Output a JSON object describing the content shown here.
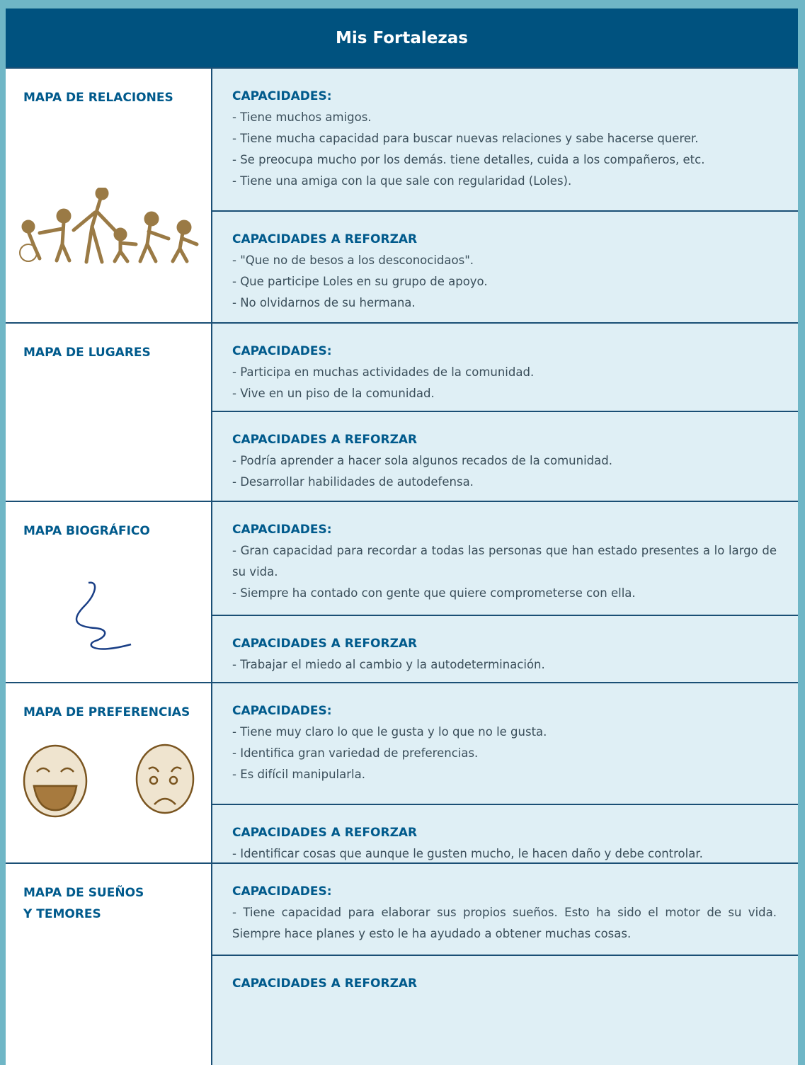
{
  "header": {
    "title": "Mis Fortalezas"
  },
  "sections": [
    {
      "label_lines": [
        "MAPA DE RELACIONES"
      ],
      "blocks": [
        {
          "heading": "CAPACIDADES:",
          "items": [
            "- Tiene muchos amigos.",
            "- Tiene mucha capacidad para buscar nuevas relaciones y sabe hacerse querer.",
            "- Se preocupa mucho por los demás. tiene detalles, cuida a los compañeros, etc.",
            "- Tiene una amiga con la que sale con regularidad (Loles)."
          ]
        },
        {
          "heading": "CAPACIDADES A REFORZAR",
          "items": [
            "- \"Que no de besos a los desconocidaos\".",
            "- Que participe Loles en su grupo de apoyo.",
            "- No olvidarnos de su hermana."
          ]
        }
      ]
    },
    {
      "label_lines": [
        "MAPA DE LUGARES"
      ],
      "blocks": [
        {
          "heading": "CAPACIDADES:",
          "items": [
            "- Participa en muchas actividades de la comunidad.",
            "- Vive en un piso de la comunidad."
          ]
        },
        {
          "heading": "CAPACIDADES A REFORZAR",
          "items": [
            "- Podría aprender a hacer sola algunos recados de la comunidad.",
            "- Desarrollar habilidades de autodefensa."
          ]
        }
      ]
    },
    {
      "label_lines": [
        "MAPA BIOGRÁFICO"
      ],
      "blocks": [
        {
          "heading": "CAPACIDADES:",
          "items": [
            "- Gran capacidad para recordar a todas las personas que han estado presentes a lo largo de su vida.",
            "- Siempre ha contado con gente que quiere comprometerse con ella."
          ]
        },
        {
          "heading": "CAPACIDADES A REFORZAR",
          "items": [
            "- Trabajar el miedo al cambio y la autodeterminación."
          ]
        }
      ]
    },
    {
      "label_lines": [
        "MAPA DE PREFERENCIAS"
      ],
      "blocks": [
        {
          "heading": "CAPACIDADES:",
          "items": [
            "- Tiene muy claro lo que le gusta y lo que no le gusta.",
            "- Identifica gran variedad de preferencias.",
            "- Es difícil manipularla."
          ]
        },
        {
          "heading": "CAPACIDADES A REFORZAR",
          "items": [
            "- Identificar cosas que aunque le gusten mucho, le hacen daño y debe controlar."
          ]
        }
      ]
    },
    {
      "label_lines": [
        "MAPA DE SUEÑOS",
        "Y TEMORES"
      ],
      "blocks": [
        {
          "heading": "CAPACIDADES:",
          "items": [
            "- Tiene capacidad para elaborar sus propios sueños. Esto ha sido el motor de su vida. Siempre hace planes y esto  le ha ayudado a obtener muchas cosas."
          ]
        },
        {
          "heading": "CAPACIDADES A REFORZAR",
          "items": []
        }
      ]
    }
  ]
}
